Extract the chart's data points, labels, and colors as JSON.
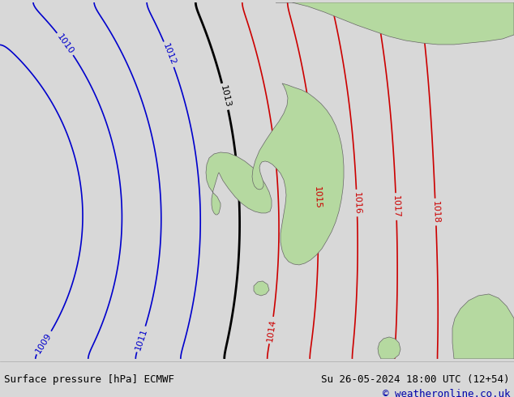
{
  "title_left": "Surface pressure [hPa] ECMWF",
  "title_right": "Su 26-05-2024 18:00 UTC (12+54)",
  "copyright": "© weatheronline.co.uk",
  "bg_color": "#d8d8d8",
  "land_color": "#b5d9a0",
  "sea_color": "#d8d8d8",
  "text_color_black": "#000000",
  "text_color_blue": "#0000cc",
  "text_color_red": "#cc0000",
  "isobar_blue_color": "#0000cc",
  "isobar_black_color": "#000000",
  "isobar_red_color": "#cc0000",
  "footer_bg": "#e8e8e8",
  "figsize": [
    6.34,
    4.9
  ],
  "dpi": 100
}
